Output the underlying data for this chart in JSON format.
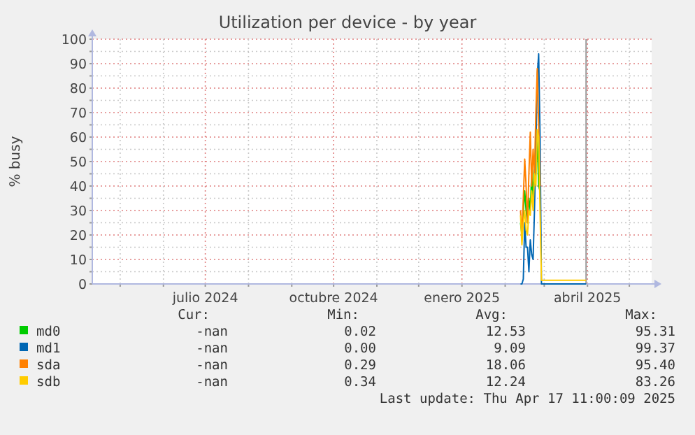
{
  "chart_data": {
    "type": "line",
    "title": "Utilization per device - by year",
    "ylabel": "% busy",
    "x": [
      "2025-02-12",
      "2025-02-13",
      "2025-02-14",
      "2025-02-15",
      "2025-02-16",
      "2025-02-17",
      "2025-02-18",
      "2025-02-19",
      "2025-02-20",
      "2025-02-21",
      "2025-02-22",
      "2025-02-23",
      "2025-02-24",
      "2025-02-25",
      "2025-02-26",
      "2025-02-27",
      "2025-03-31"
    ],
    "series": [
      {
        "name": "md0",
        "color": "#00cc00",
        "values": [
          25,
          20,
          30,
          38,
          30,
          25,
          35,
          30,
          45,
          35,
          52,
          45,
          60,
          40,
          38,
          null,
          null
        ]
      },
      {
        "name": "md1",
        "color": "#0066b3",
        "values": [
          0,
          0,
          2,
          25,
          15,
          15,
          5,
          18,
          12,
          10,
          30,
          55,
          85,
          94,
          60,
          0,
          0
        ]
      },
      {
        "name": "sda",
        "color": "#ff8000",
        "values": [
          30,
          20,
          35,
          51,
          40,
          25,
          45,
          62,
          40,
          55,
          45,
          70,
          88,
          65,
          40,
          null,
          null
        ]
      },
      {
        "name": "sdb",
        "color": "#ffcc00",
        "values": [
          28,
          16,
          25,
          30,
          22,
          20,
          30,
          28,
          38,
          30,
          45,
          40,
          63,
          60,
          30,
          1.5,
          1.5
        ]
      }
    ],
    "xlim": [
      "2024-04-11",
      "2025-05-17"
    ],
    "xticks": [
      {
        "value": "2024-05-01",
        "label": null
      },
      {
        "value": "2024-06-01",
        "label": null
      },
      {
        "value": "2024-07-01",
        "label": "julio 2024"
      },
      {
        "value": "2024-08-01",
        "label": null
      },
      {
        "value": "2024-09-01",
        "label": null
      },
      {
        "value": "2024-10-01",
        "label": "octubre 2024"
      },
      {
        "value": "2024-11-01",
        "label": null
      },
      {
        "value": "2024-12-01",
        "label": null
      },
      {
        "value": "2025-01-01",
        "label": "enero 2025"
      },
      {
        "value": "2025-02-01",
        "label": null
      },
      {
        "value": "2025-03-01",
        "label": null
      },
      {
        "value": "2025-04-01",
        "label": "abril 2025"
      },
      {
        "value": "2025-05-01",
        "label": null
      }
    ],
    "ylim": [
      0,
      100
    ],
    "yticks": [
      0,
      {
        "value": 5,
        "label": null
      },
      10,
      {
        "value": 15,
        "label": null
      },
      20,
      {
        "value": 25,
        "label": null
      },
      30,
      {
        "value": 35,
        "label": null
      },
      40,
      {
        "value": 45,
        "label": null
      },
      50,
      {
        "value": 55,
        "label": null
      },
      60,
      {
        "value": 65,
        "label": null
      },
      70,
      {
        "value": 75,
        "label": null
      },
      80,
      {
        "value": 85,
        "label": null
      },
      90,
      {
        "value": 95,
        "label": null
      },
      100
    ],
    "grid": true,
    "legend": "bottom",
    "marker": "none",
    "line_style": "solid",
    "ref_lines": [
      {
        "axis": "x",
        "value": "2025-03-31",
        "color": "#999999"
      }
    ],
    "annotations": [
      "Cur:",
      "Min:",
      "Avg:",
      "Max:",
      "-nan",
      "0.02",
      "12.53",
      "95.31",
      "-nan",
      "0.00",
      "9.09",
      "99.37",
      "-nan",
      "0.29",
      "18.06",
      "95.40",
      "-nan",
      "0.34",
      "12.24",
      "83.26",
      "Last update: Thu Apr 17 11:00:09 2025"
    ]
  }
}
